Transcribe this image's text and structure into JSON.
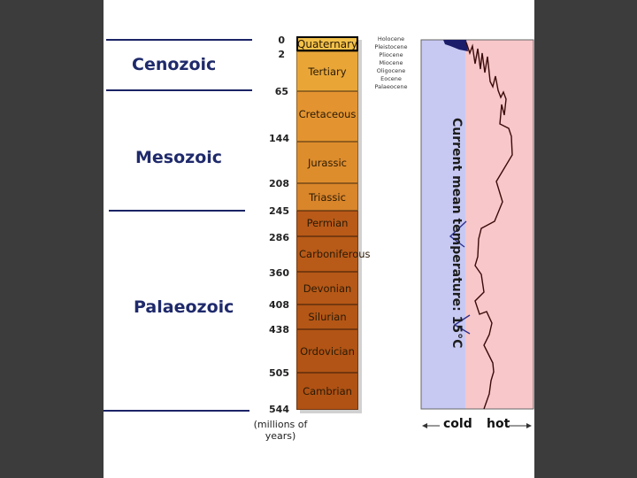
{
  "eras": [
    {
      "name": "Cenozoic"
    },
    {
      "name": "Mesozoic"
    },
    {
      "name": "Palaeozoic"
    }
  ],
  "periods": [
    {
      "name": "Quaternary",
      "color": "#f2c14a"
    },
    {
      "name": "Tertiary",
      "color": "#e9a637"
    },
    {
      "name": "Cretaceous",
      "color": "#e39430"
    },
    {
      "name": "Jurassic",
      "color": "#de8d2c"
    },
    {
      "name": "Triassic",
      "color": "#d9852a"
    },
    {
      "name": "Permian",
      "color": "#b95a18"
    },
    {
      "name": "Carboniferous",
      "color": "#b85a18"
    },
    {
      "name": "Devonian",
      "color": "#b65817"
    },
    {
      "name": "Silurian",
      "color": "#b45616"
    },
    {
      "name": "Ordovician",
      "color": "#b25415"
    },
    {
      "name": "Cambrian",
      "color": "#b05214"
    }
  ],
  "ages": [
    "0",
    "2",
    "65",
    "144",
    "208",
    "245",
    "286",
    "360",
    "408",
    "438",
    "505",
    "544"
  ],
  "epochs": [
    "Holocene",
    "Pleistocene",
    "Pliocene",
    "Miocene",
    "Oligocene",
    "Eocene",
    "Palaeocene"
  ],
  "axis_unit_label": "(millions of years)",
  "temperature": {
    "cold_label": "cold",
    "hot_label": "hot",
    "mean_label": "Current mean temperature: 15°C",
    "cold_color": "#c7c9f3",
    "hot_color": "#f8c7c9"
  }
}
